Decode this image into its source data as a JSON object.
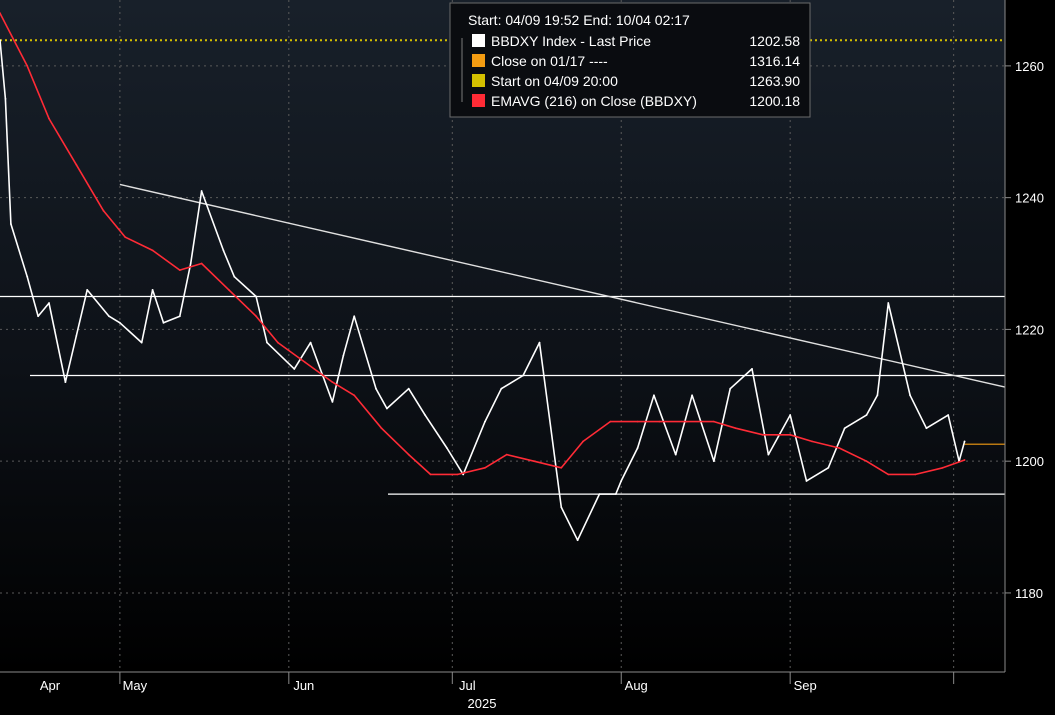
{
  "chart_data": {
    "type": "line",
    "title": "",
    "xlabel": "",
    "ylabel": "",
    "x_ticks": [
      "Apr",
      "May",
      "Jun",
      "Jul",
      "Aug",
      "Sep"
    ],
    "x_year": "2025",
    "ylim": [
      1168,
      1270
    ],
    "y_ticks": [
      1180,
      1200,
      1220,
      1240,
      1260
    ],
    "grid": true,
    "legend_position": "top-center",
    "header": {
      "range_text": "Start: 04/09 19:52 End: 10/04 02:17"
    },
    "legend": [
      {
        "name": "BBDXY Index - Last Price",
        "value": "1202.58",
        "color": "#ffffff"
      },
      {
        "name": "Close on 01/17 ----",
        "value": "1316.14",
        "color": "#f39c12"
      },
      {
        "name": "Start on 04/09 20:00",
        "value": "1263.90",
        "color": "#d4c000"
      },
      {
        "name": "EMAVG (216)  on Close (BBDXY)",
        "value": "1200.18",
        "color": "#ff2b36"
      }
    ],
    "series": [
      {
        "name": "BBDXY Index - Last Price",
        "color": "#ffffff",
        "x": [
          "2025-04-09",
          "2025-04-10",
          "2025-04-11",
          "2025-04-14",
          "2025-04-16",
          "2025-04-18",
          "2025-04-21",
          "2025-04-23",
          "2025-04-25",
          "2025-04-29",
          "2025-05-01",
          "2025-05-05",
          "2025-05-07",
          "2025-05-09",
          "2025-05-12",
          "2025-05-14",
          "2025-05-16",
          "2025-05-20",
          "2025-05-22",
          "2025-05-26",
          "2025-05-28",
          "2025-06-02",
          "2025-06-05",
          "2025-06-09",
          "2025-06-11",
          "2025-06-13",
          "2025-06-17",
          "2025-06-19",
          "2025-06-23",
          "2025-06-26",
          "2025-06-30",
          "2025-07-03",
          "2025-07-07",
          "2025-07-10",
          "2025-07-14",
          "2025-07-17",
          "2025-07-21",
          "2025-07-24",
          "2025-07-28",
          "2025-07-31",
          "2025-08-01",
          "2025-08-04",
          "2025-08-07",
          "2025-08-11",
          "2025-08-14",
          "2025-08-18",
          "2025-08-21",
          "2025-08-25",
          "2025-08-28",
          "2025-09-01",
          "2025-09-04",
          "2025-09-08",
          "2025-09-11",
          "2025-09-15",
          "2025-09-17",
          "2025-09-19",
          "2025-09-23",
          "2025-09-26",
          "2025-09-30",
          "2025-10-02",
          "2025-10-03"
        ],
        "values": [
          1263.9,
          1255,
          1236,
          1228,
          1222,
          1224,
          1212,
          1219,
          1226,
          1222,
          1221,
          1218,
          1226,
          1221,
          1222,
          1230,
          1241,
          1232,
          1228,
          1225,
          1218,
          1214,
          1218,
          1209,
          1216,
          1222,
          1211,
          1208,
          1211,
          1207,
          1202,
          1198,
          1206,
          1211,
          1213,
          1218,
          1193,
          1188,
          1195,
          1195,
          1197,
          1202,
          1210,
          1201,
          1210,
          1200,
          1211,
          1214,
          1201,
          1207,
          1197,
          1199,
          1205,
          1207,
          1210,
          1224,
          1210,
          1205,
          1207,
          1200,
          1203
        ]
      },
      {
        "name": "EMAVG (216)  on Close (BBDXY)",
        "color": "#ff2b36",
        "x": [
          "2025-04-09",
          "2025-04-14",
          "2025-04-18",
          "2025-04-23",
          "2025-04-28",
          "2025-05-02",
          "2025-05-07",
          "2025-05-12",
          "2025-05-16",
          "2025-05-21",
          "2025-05-26",
          "2025-05-30",
          "2025-06-04",
          "2025-06-09",
          "2025-06-13",
          "2025-06-18",
          "2025-06-23",
          "2025-06-27",
          "2025-07-02",
          "2025-07-07",
          "2025-07-11",
          "2025-07-16",
          "2025-07-21",
          "2025-07-25",
          "2025-07-30",
          "2025-08-04",
          "2025-08-08",
          "2025-08-13",
          "2025-08-18",
          "2025-08-22",
          "2025-08-27",
          "2025-09-01",
          "2025-09-05",
          "2025-09-10",
          "2025-09-15",
          "2025-09-19",
          "2025-09-24",
          "2025-09-29",
          "2025-10-03"
        ],
        "values": [
          1268,
          1260,
          1252,
          1245,
          1238,
          1234,
          1232,
          1229,
          1230,
          1226,
          1222,
          1218,
          1215,
          1212,
          1210,
          1205,
          1201,
          1198,
          1198,
          1199,
          1201,
          1200,
          1199,
          1203,
          1206,
          1206,
          1206,
          1206,
          1206,
          1205,
          1204,
          1204,
          1203,
          1202,
          1200,
          1198,
          1198,
          1199,
          1200.18
        ]
      }
    ],
    "reference_lines": [
      {
        "name": "Start on 04/09 20:00",
        "value": 1263.9,
        "color": "#d4c000",
        "style": "dotted"
      },
      {
        "name": "Support/Resistance",
        "value": 1225,
        "color": "#ffffff",
        "style": "solid"
      },
      {
        "name": "Support/Resistance",
        "value": 1213,
        "color": "#ffffff",
        "style": "solid"
      },
      {
        "name": "Support/Resistance",
        "value": 1195,
        "color": "#ffffff",
        "style": "solid"
      }
    ],
    "trend_line": {
      "color": "#e0e0e0",
      "from": {
        "x": "2025-05-01",
        "y": 1242
      },
      "to": {
        "x": "2025-10-04",
        "y": 1212
      }
    },
    "last_price_marker": {
      "value": 1202.58,
      "color": "#f39c12"
    }
  }
}
